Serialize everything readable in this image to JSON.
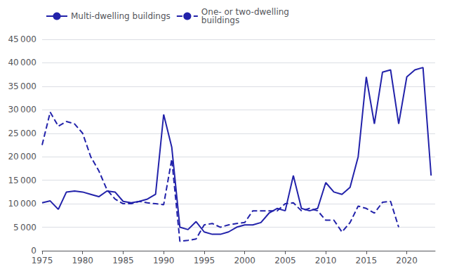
{
  "chart_data": {
    "type": "line",
    "series": [
      {
        "name": "Multi-dwelling buildings",
        "color": "#2222aa",
        "line_style": "solid",
        "x": [
          1975,
          1976,
          1977,
          1978,
          1979,
          1980,
          1981,
          1982,
          1983,
          1984,
          1985,
          1986,
          1987,
          1988,
          1989,
          1990,
          1991,
          1992,
          1993,
          1994,
          1995,
          1996,
          1997,
          1998,
          1999,
          2000,
          2001,
          2002,
          2003,
          2004,
          2005,
          2006,
          2007,
          2008,
          2009,
          2010,
          2011,
          2012,
          2013,
          2014,
          2015,
          2016,
          2017,
          2018,
          2019,
          2020,
          2021,
          2022,
          2023
        ],
        "values": [
          10200,
          10600,
          8800,
          12500,
          12700,
          12500,
          12000,
          11500,
          12700,
          12500,
          10500,
          10200,
          10500,
          11000,
          12000,
          29000,
          22000,
          5000,
          4500,
          6200,
          4000,
          3500,
          3500,
          4000,
          5000,
          5500,
          5500,
          6000,
          8000,
          9000,
          8500,
          16000,
          9000,
          8500,
          9000,
          14500,
          12500,
          12000,
          13500,
          20000,
          37000,
          27000,
          38000,
          38500,
          27000,
          37000,
          38500,
          39000,
          16000
        ]
      },
      {
        "name": "One- or two-dwelling\nbuildings",
        "color": "#2222aa",
        "line_style": "dashed",
        "x": [
          1975,
          1976,
          1977,
          1978,
          1979,
          1980,
          1981,
          1982,
          1983,
          1984,
          1985,
          1986,
          1987,
          1988,
          1989,
          1990,
          1991,
          1992,
          1993,
          1994,
          1995,
          1996,
          1997,
          1998,
          1999,
          2000,
          2001,
          2002,
          2003,
          2004,
          2005,
          2006,
          2007,
          2008,
          2009,
          2010,
          2011,
          2012,
          2013,
          2014,
          2015,
          2016,
          2017,
          2018,
          2019
        ],
        "values": [
          22500,
          29500,
          26500,
          27500,
          27000,
          25000,
          20000,
          17000,
          13000,
          11000,
          10000,
          10000,
          10500,
          10200,
          10000,
          9800,
          19500,
          2000,
          2200,
          2500,
          5500,
          5800,
          5000,
          5500,
          5800,
          6000,
          8500,
          8500,
          8500,
          8500,
          10000,
          10200,
          8500,
          9000,
          8500,
          6500,
          6500,
          4000,
          6000,
          9500,
          9000,
          8000,
          10300,
          10500,
          5000
        ]
      }
    ],
    "xlim": [
      1975,
      2023.5
    ],
    "xticks": [
      1975,
      1980,
      1985,
      1990,
      1995,
      2000,
      2005,
      2010,
      2015,
      2020
    ],
    "ylim": [
      0,
      45000
    ],
    "yticks": [
      0,
      {
        "value": 5000,
        "label": "5 000"
      },
      {
        "value": 10000,
        "label": "10 000"
      },
      {
        "value": 15000,
        "label": "15 000"
      },
      {
        "value": 20000,
        "label": "20 000"
      },
      {
        "value": 25000,
        "label": "25 000"
      },
      {
        "value": 30000,
        "label": "30 000"
      },
      {
        "value": 35000,
        "label": "35 000"
      },
      {
        "value": 40000,
        "label": "40 000"
      },
      {
        "value": 45000,
        "label": "45 000"
      }
    ],
    "grid": true,
    "legend": "upper left"
  }
}
